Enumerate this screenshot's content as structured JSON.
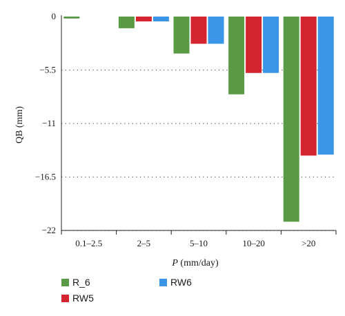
{
  "chart_data": {
    "type": "bar",
    "categories": [
      "0.1–2.5",
      "2–5",
      "5–10",
      "10–20",
      ">20"
    ],
    "series": [
      {
        "name": "R_6",
        "color": "#5a9a45",
        "values": [
          -0.2,
          -1.2,
          -3.8,
          -8.0,
          -21.1
        ]
      },
      {
        "name": "RW5",
        "color": "#d4242f",
        "values": [
          0,
          -0.5,
          -2.8,
          -5.8,
          -14.3
        ]
      },
      {
        "name": "RW6",
        "color": "#3a95e6",
        "values": [
          0,
          -0.5,
          -2.8,
          -5.8,
          -14.2
        ]
      }
    ],
    "ylabel": "QB (mm)",
    "xlabel_italic": "P",
    "xlabel_rest": " (mm/day)",
    "yticks": [
      0,
      -5.5,
      -11,
      -16.5,
      -22
    ],
    "ytick_labels": [
      "0",
      "−5.5",
      "−11",
      "−16.5",
      "−22"
    ],
    "ylim": [
      -22,
      0
    ],
    "grid": "dotted horizontal",
    "legend_placement": "bottom-left"
  }
}
